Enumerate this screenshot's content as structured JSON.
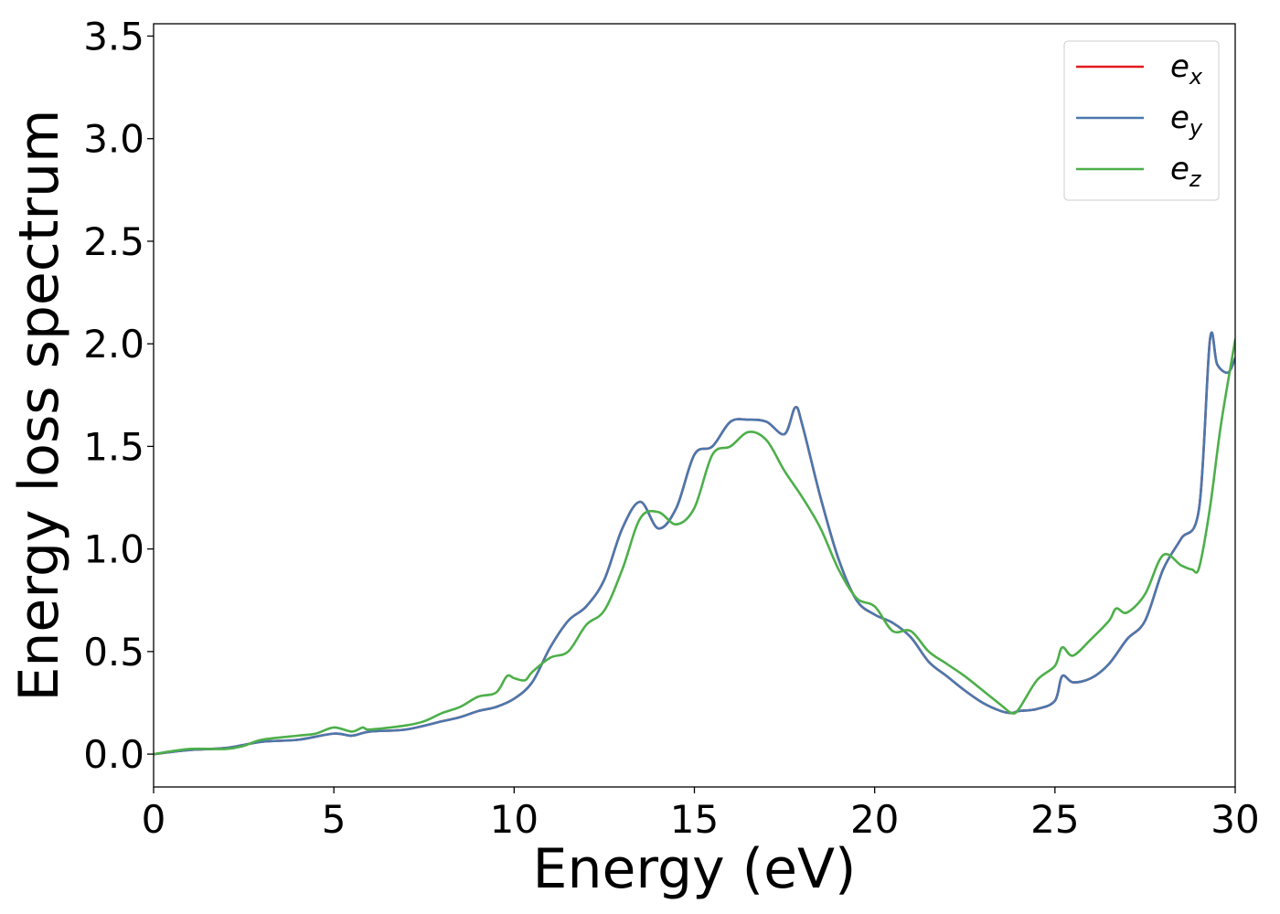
{
  "chart_data": {
    "type": "line",
    "title": "",
    "xlabel": "Energy (eV)",
    "ylabel": "Energy loss spectrum",
    "xlim": [
      0,
      30
    ],
    "ylim": [
      -0.16,
      3.56
    ],
    "xticks": [
      0,
      5,
      10,
      15,
      20,
      25,
      30
    ],
    "xtick_labels": [
      "0",
      "5",
      "10",
      "15",
      "20",
      "25",
      "30"
    ],
    "yticks": [
      0.0,
      0.5,
      1.0,
      1.5,
      2.0,
      2.5,
      3.0,
      3.5
    ],
    "ytick_labels": [
      "0.0",
      "0.5",
      "1.0",
      "1.5",
      "2.0",
      "2.5",
      "3.0",
      "3.5"
    ],
    "grid": false,
    "legend_position": "top-right",
    "series": [
      {
        "name": "e_x",
        "label_base": "e",
        "label_sub": "x",
        "color": "#e41a1c",
        "x": [
          0,
          1,
          2,
          3,
          4,
          5,
          5.5,
          6,
          7,
          8,
          8.5,
          9,
          9.5,
          10,
          10.5,
          11,
          11.5,
          12,
          12.5,
          13,
          13.5,
          14,
          14.5,
          15,
          15.5,
          16,
          16.5,
          17,
          17.5,
          17.8,
          18,
          18.5,
          19,
          19.5,
          20,
          20.5,
          21,
          21.5,
          22,
          22.5,
          23,
          23.5,
          23.8,
          24,
          24.5,
          25,
          25.2,
          25.5,
          26,
          26.5,
          27,
          27.5,
          28,
          28.5,
          29,
          29.3,
          29.5,
          29.8,
          30
        ],
        "y": [
          0.0,
          0.02,
          0.03,
          0.06,
          0.07,
          0.1,
          0.09,
          0.11,
          0.12,
          0.16,
          0.18,
          0.21,
          0.23,
          0.27,
          0.35,
          0.52,
          0.65,
          0.72,
          0.85,
          1.1,
          1.23,
          1.1,
          1.2,
          1.46,
          1.5,
          1.62,
          1.63,
          1.62,
          1.56,
          1.69,
          1.6,
          1.25,
          0.95,
          0.75,
          0.68,
          0.64,
          0.57,
          0.45,
          0.38,
          0.31,
          0.25,
          0.21,
          0.2,
          0.21,
          0.22,
          0.26,
          0.38,
          0.35,
          0.37,
          0.44,
          0.56,
          0.65,
          0.9,
          1.05,
          1.2,
          2.02,
          1.9,
          1.86,
          1.93
        ]
      },
      {
        "name": "e_y",
        "label_base": "e",
        "label_sub": "y",
        "color": "#4a78ad",
        "x": [
          0,
          1,
          2,
          3,
          4,
          5,
          5.5,
          6,
          7,
          8,
          8.5,
          9,
          9.5,
          10,
          10.5,
          11,
          11.5,
          12,
          12.5,
          13,
          13.5,
          14,
          14.5,
          15,
          15.5,
          16,
          16.5,
          17,
          17.5,
          17.8,
          18,
          18.5,
          19,
          19.5,
          20,
          20.5,
          21,
          21.5,
          22,
          22.5,
          23,
          23.5,
          23.8,
          24,
          24.5,
          25,
          25.2,
          25.5,
          26,
          26.5,
          27,
          27.5,
          28,
          28.5,
          29,
          29.3,
          29.5,
          29.8,
          30
        ],
        "y": [
          0.0,
          0.02,
          0.03,
          0.06,
          0.07,
          0.1,
          0.09,
          0.11,
          0.12,
          0.16,
          0.18,
          0.21,
          0.23,
          0.27,
          0.35,
          0.52,
          0.65,
          0.72,
          0.85,
          1.1,
          1.23,
          1.1,
          1.2,
          1.46,
          1.5,
          1.62,
          1.63,
          1.62,
          1.56,
          1.69,
          1.6,
          1.25,
          0.95,
          0.75,
          0.68,
          0.64,
          0.57,
          0.45,
          0.38,
          0.31,
          0.25,
          0.21,
          0.2,
          0.21,
          0.22,
          0.26,
          0.38,
          0.35,
          0.37,
          0.44,
          0.56,
          0.65,
          0.9,
          1.05,
          1.2,
          2.02,
          1.9,
          1.86,
          1.93
        ]
      },
      {
        "name": "e_z",
        "label_base": "e",
        "label_sub": "z",
        "color": "#4daf4a",
        "x": [
          0,
          1,
          2,
          2.5,
          3,
          4,
          4.5,
          5,
          5.5,
          5.8,
          6,
          7,
          7.5,
          8,
          8.5,
          9,
          9.5,
          9.8,
          10,
          10.3,
          10.5,
          11,
          11.5,
          12,
          12.5,
          13,
          13.5,
          14,
          14.5,
          15,
          15.5,
          16,
          16.5,
          17,
          17.5,
          18,
          18.5,
          19,
          19.5,
          20,
          20.5,
          21,
          21.5,
          22,
          22.5,
          23,
          23.5,
          23.8,
          24,
          24.5,
          25,
          25.2,
          25.5,
          26,
          26.5,
          26.7,
          27,
          27.5,
          28,
          28.5,
          28.8,
          29,
          29.3,
          29.6,
          30
        ],
        "y": [
          0.0,
          0.025,
          0.025,
          0.04,
          0.07,
          0.09,
          0.1,
          0.13,
          0.11,
          0.13,
          0.12,
          0.14,
          0.16,
          0.2,
          0.23,
          0.28,
          0.3,
          0.38,
          0.37,
          0.36,
          0.4,
          0.47,
          0.5,
          0.63,
          0.7,
          0.9,
          1.15,
          1.18,
          1.12,
          1.2,
          1.46,
          1.5,
          1.57,
          1.53,
          1.38,
          1.25,
          1.1,
          0.9,
          0.76,
          0.72,
          0.6,
          0.6,
          0.5,
          0.44,
          0.38,
          0.31,
          0.24,
          0.2,
          0.22,
          0.36,
          0.43,
          0.52,
          0.48,
          0.56,
          0.65,
          0.71,
          0.69,
          0.78,
          0.97,
          0.92,
          0.9,
          0.91,
          1.2,
          1.6,
          2.02
        ]
      }
    ]
  }
}
